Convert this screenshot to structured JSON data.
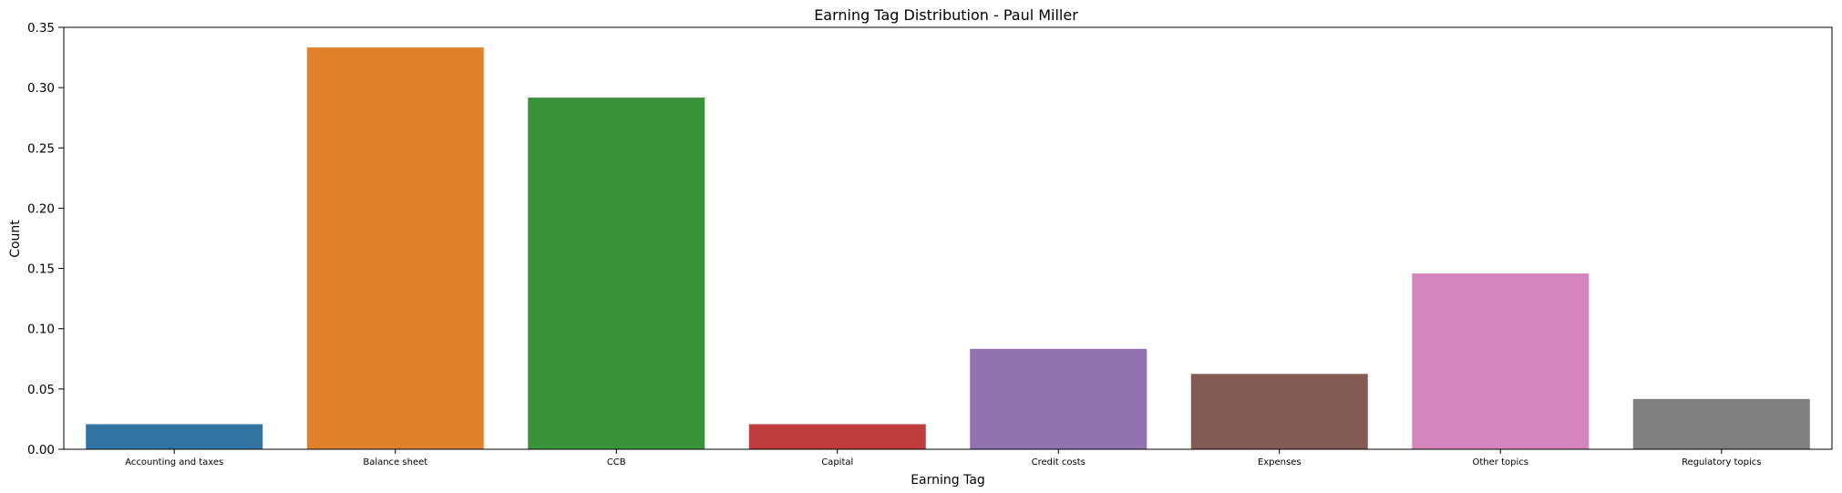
{
  "chart_data": {
    "type": "bar",
    "title": "Earning Tag Distribution - Paul Miller",
    "xlabel": "Earning Tag",
    "ylabel": "Count",
    "ylim": [
      0,
      0.35
    ],
    "yticks": [
      "0.00",
      "0.05",
      "0.10",
      "0.15",
      "0.20",
      "0.25",
      "0.30",
      "0.35"
    ],
    "grid": false,
    "categories": [
      "Accounting and taxes",
      "Balance sheet",
      "CCB",
      "Capital",
      "Credit costs",
      "Expenses",
      "Other topics",
      "Regulatory topics"
    ],
    "values": [
      0.0208,
      0.3333,
      0.2917,
      0.0208,
      0.0833,
      0.0625,
      0.1458,
      0.0417
    ],
    "colors": [
      "#3274a1",
      "#e1812c",
      "#3a923a",
      "#c03d3e",
      "#9372b2",
      "#845b53",
      "#d684bd",
      "#7f7f7f"
    ]
  }
}
